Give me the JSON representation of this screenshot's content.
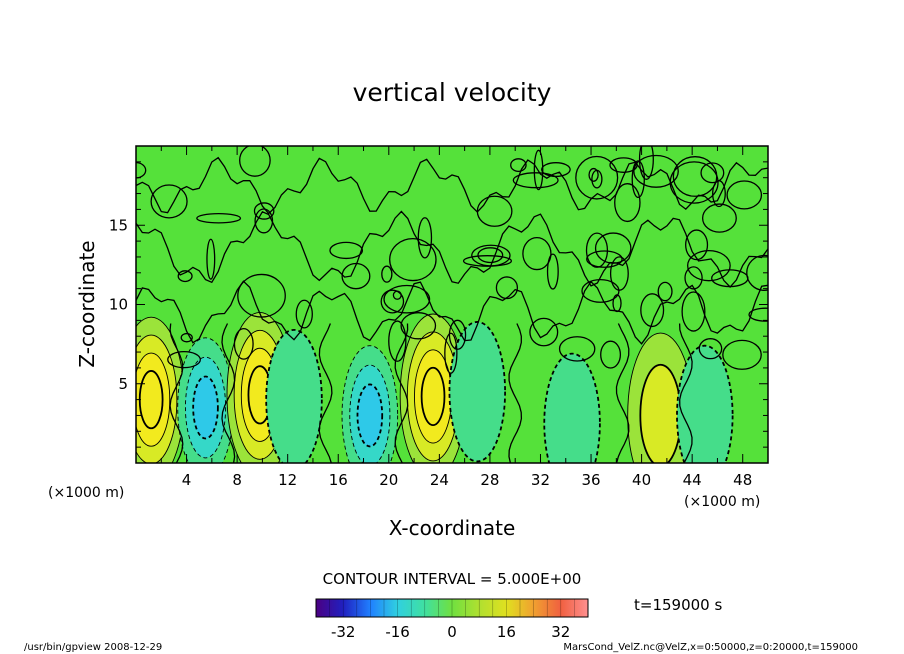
{
  "chart_data": {
    "type": "heatmap",
    "title": "vertical velocity",
    "xlabel": "X-coordinate",
    "ylabel": "Z-coordinate",
    "x_unit": "(×1000 m)",
    "y_unit": "(×1000 m)",
    "xlim": [
      0,
      50
    ],
    "ylim": [
      0,
      20
    ],
    "x_ticks": [
      "4",
      "8",
      "12",
      "16",
      "20",
      "24",
      "28",
      "32",
      "36",
      "40",
      "44",
      "48"
    ],
    "y_ticks": [
      "5",
      "10",
      "15"
    ],
    "contour_interval_text": "CONTOUR INTERVAL = 5.000E+00",
    "contour_interval": 5.0,
    "colorbar": {
      "range": [
        -40,
        40
      ],
      "ticks": [
        "-32",
        "-16",
        "0",
        "16",
        "32"
      ],
      "colors": [
        "#4b0082",
        "#2020c0",
        "#2080ff",
        "#30d0e0",
        "#40e0a0",
        "#70e040",
        "#b0e030",
        "#e0e020",
        "#f0a030",
        "#f06040",
        "#ff9090"
      ]
    },
    "background_color": "#55e13a",
    "time_label": "t=159000 s",
    "features": [
      {
        "x": 1.2,
        "z": 4.0,
        "sign": "up",
        "peak": 20
      },
      {
        "x": 5.5,
        "z": 3.5,
        "sign": "down",
        "peak": -15
      },
      {
        "x": 9.8,
        "z": 4.3,
        "sign": "up",
        "peak": 20
      },
      {
        "x": 12.5,
        "z": 4.0,
        "sign": "down",
        "peak": -8
      },
      {
        "x": 18.5,
        "z": 3.0,
        "sign": "down",
        "peak": -15
      },
      {
        "x": 23.5,
        "z": 4.2,
        "sign": "up",
        "peak": 20
      },
      {
        "x": 27.0,
        "z": 4.5,
        "sign": "down",
        "peak": -8
      },
      {
        "x": 34.5,
        "z": 2.5,
        "sign": "down",
        "peak": -8
      },
      {
        "x": 41.5,
        "z": 3.0,
        "sign": "up",
        "peak": 12
      },
      {
        "x": 45.0,
        "z": 3.0,
        "sign": "down",
        "peak": -6
      }
    ]
  },
  "footer": {
    "left": "/usr/bin/gpview   2008-12-29",
    "right": "MarsCond_VelZ.nc@VelZ,x=0:50000,z=0:20000,t=159000"
  }
}
